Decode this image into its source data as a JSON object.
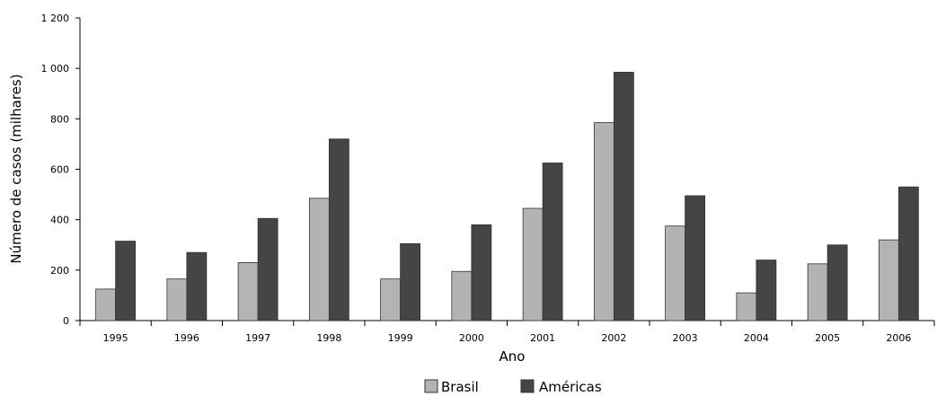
{
  "chart_data": {
    "type": "bar",
    "title": "",
    "xlabel": "Ano",
    "ylabel": "Número de casos (milhares)",
    "categories": [
      "1995",
      "1996",
      "1997",
      "1998",
      "1999",
      "2000",
      "2001",
      "2002",
      "2003",
      "2004",
      "2005",
      "2006"
    ],
    "series": [
      {
        "name": "Brasil",
        "color": "#b3b3b3",
        "values": [
          125,
          165,
          230,
          485,
          165,
          195,
          445,
          785,
          375,
          110,
          225,
          320
        ]
      },
      {
        "name": "Américas",
        "color": "#454545",
        "values": [
          315,
          270,
          405,
          720,
          305,
          380,
          625,
          985,
          495,
          240,
          300,
          530
        ]
      }
    ],
    "ylim": [
      0,
      1200
    ],
    "yticks": [
      0,
      200,
      400,
      600,
      800,
      1000,
      1200
    ],
    "ytick_labels": [
      "0",
      "200",
      "400",
      "600",
      "800",
      "1 000",
      "1 200"
    ],
    "grid": false,
    "legend_position": "bottom-center"
  }
}
